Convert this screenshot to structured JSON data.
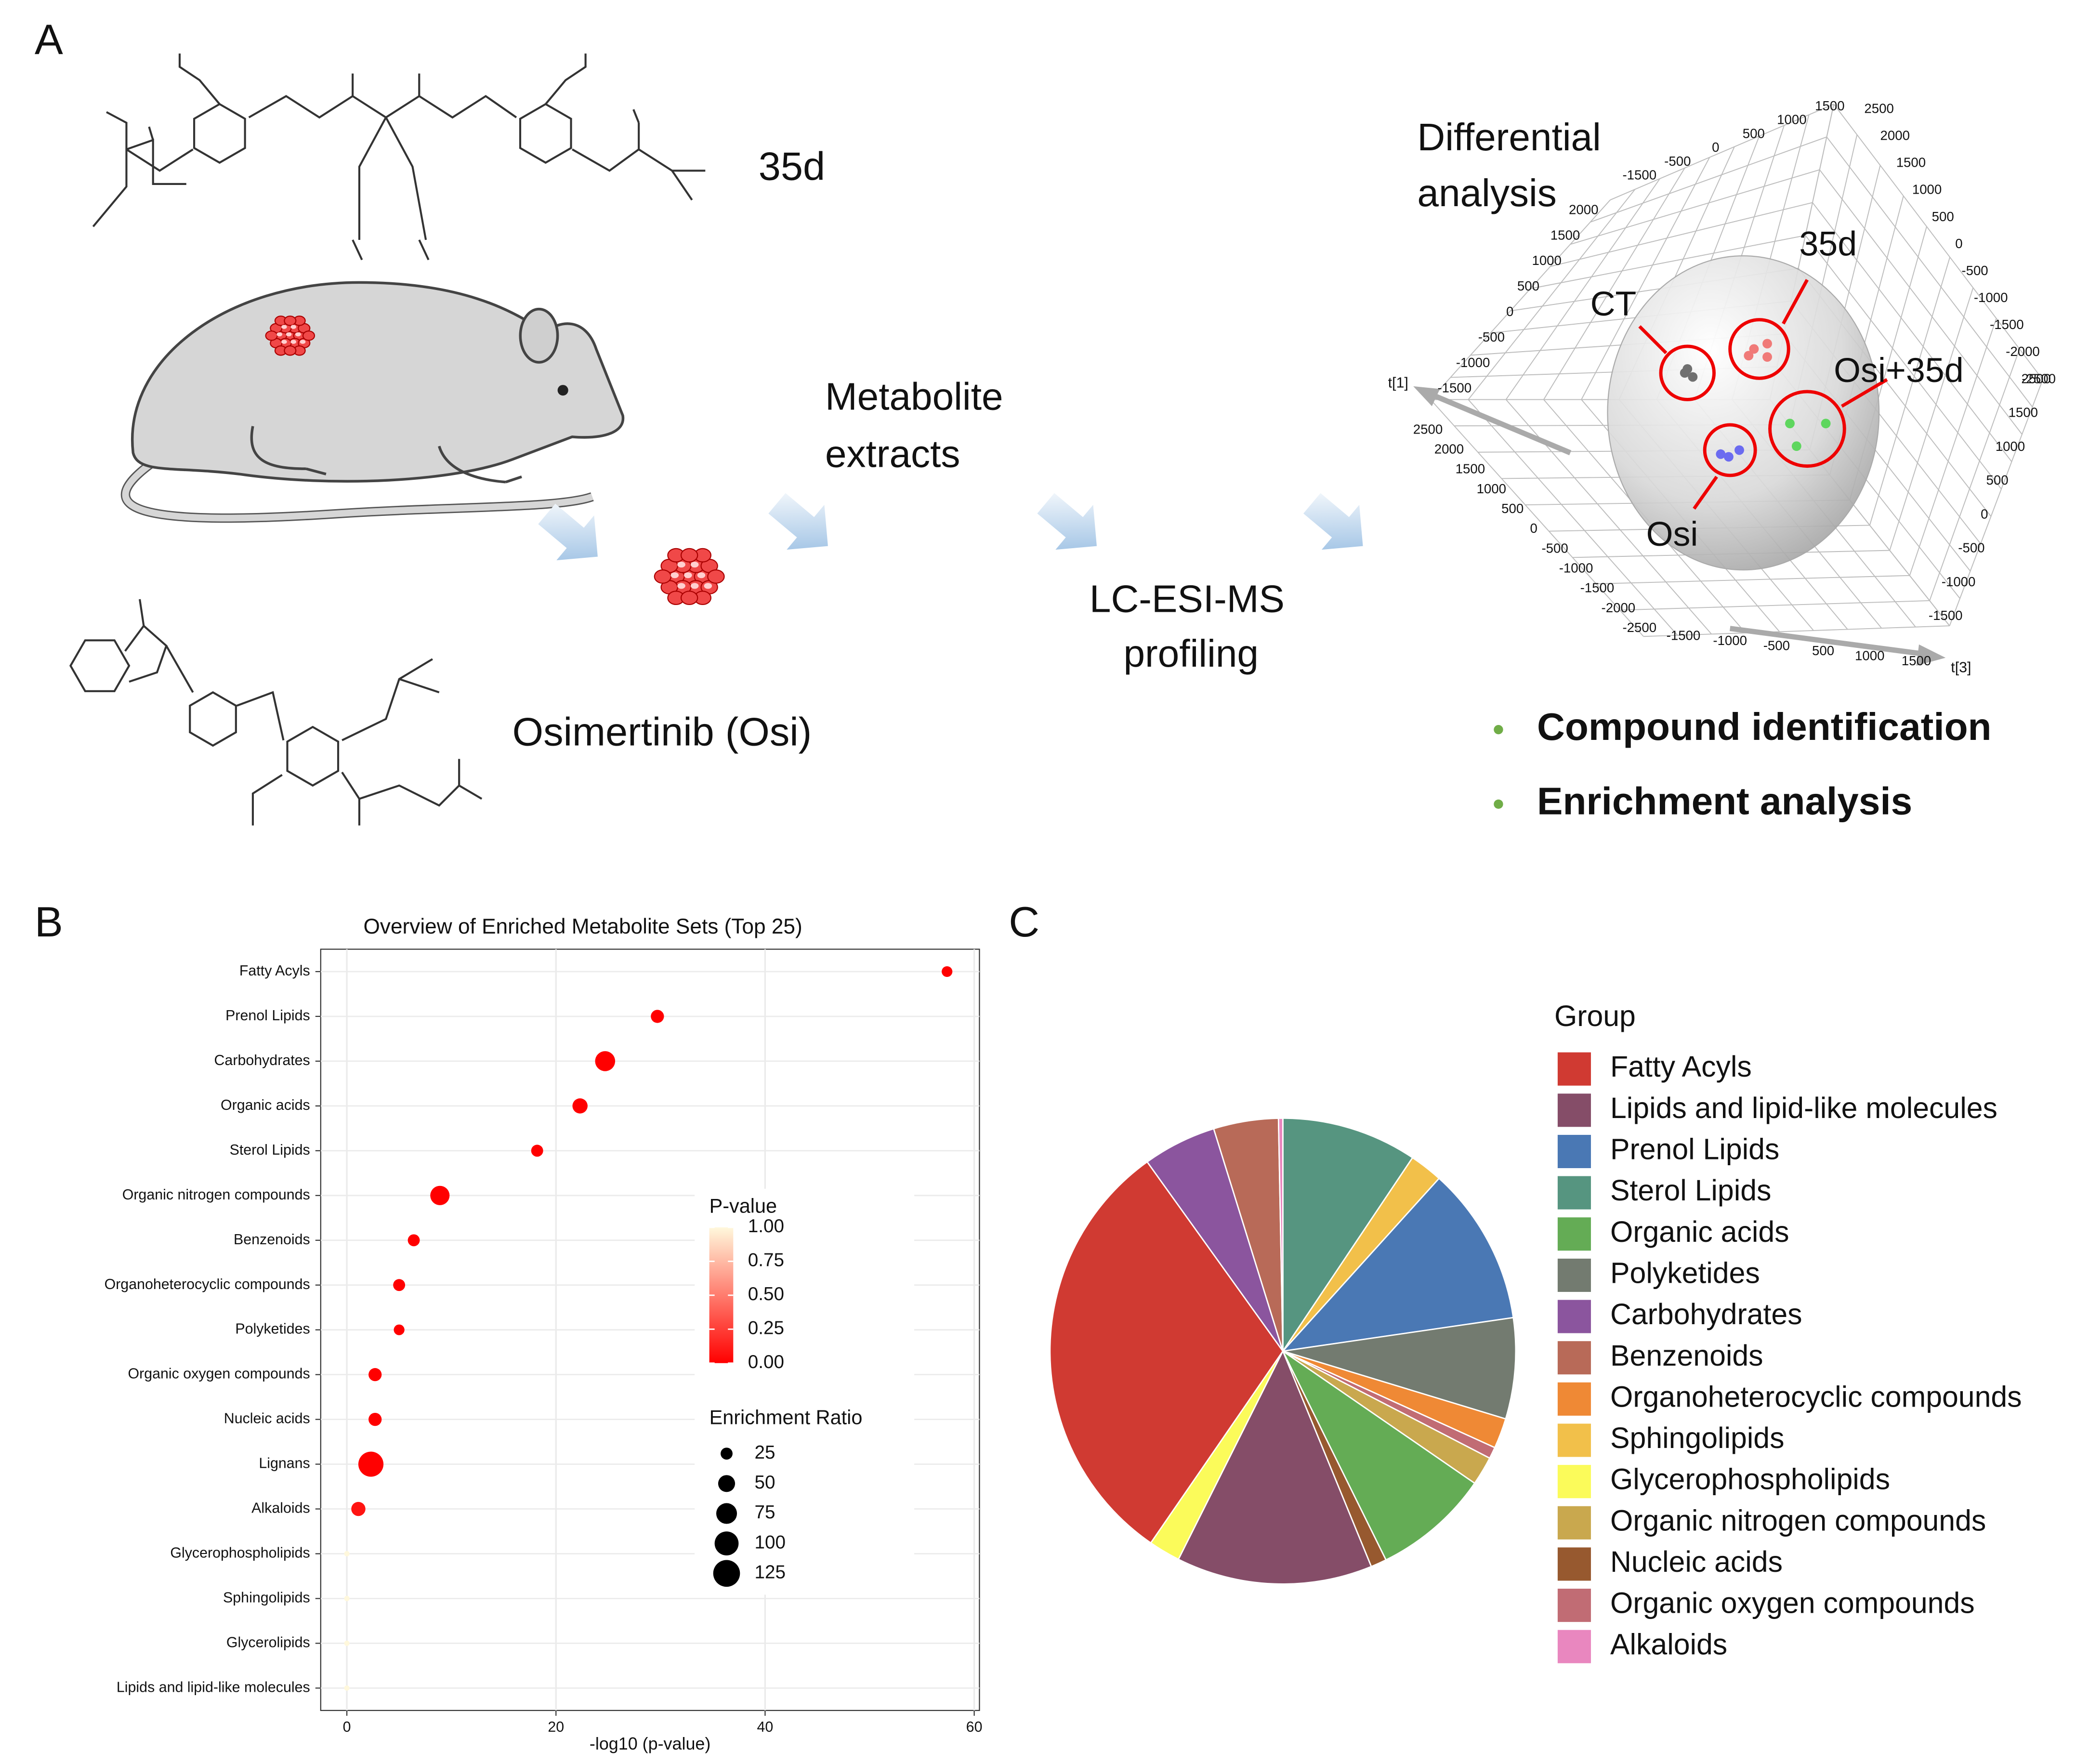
{
  "panel_labels": [
    "A",
    "B",
    "C"
  ],
  "panel_a": {
    "compound_1": "35d",
    "compound_2": "Osimertinib (Osi)",
    "step_1": [
      "Metabolite",
      "extracts"
    ],
    "step_2": [
      "LC-ESI-MS",
      "profiling"
    ],
    "step_3": [
      "Differential",
      "analysis"
    ],
    "pca": {
      "groups": [
        {
          "name": "CT",
          "color": "#707070"
        },
        {
          "name": "35d",
          "color": "#f07a78"
        },
        {
          "name": "Osi+35d",
          "color": "#5ed65e"
        },
        {
          "name": "Osi",
          "color": "#6b6bf0"
        }
      ],
      "axis_labels": [
        "t[1]",
        "t[3]"
      ],
      "tick_axes": [
        [
          "-1500",
          "-500",
          "0",
          "500",
          "1000",
          "1500"
        ],
        [
          "2500",
          "2000",
          "1500",
          "1000",
          "500",
          "0",
          "-500",
          "-1000",
          "-1500",
          "-2000",
          "-2500"
        ],
        [
          "2500",
          "1500",
          "1000",
          "500",
          "0",
          "-500",
          "-1000",
          "-1500"
        ],
        [
          "2000",
          "1500",
          "1000",
          "500",
          "0",
          "-500",
          "-1000",
          "-1500"
        ],
        [
          "2500",
          "2000",
          "1500",
          "1000",
          "500",
          "0",
          "-500",
          "-1000",
          "-1500",
          "-2000",
          "-2500"
        ],
        [
          "-1500",
          "-1000",
          "-500",
          "500",
          "1000",
          "1500"
        ]
      ]
    },
    "outputs": [
      "Compound identification",
      "Enrichment analysis"
    ],
    "output_color": "#70ad47"
  },
  "chart_data": [
    {
      "type": "dot",
      "title": "Overview of Enriched Metabolite Sets (Top 25)",
      "x_label": "-log10 (p-value)",
      "categories": [
        "Fatty Acyls",
        "Prenol Lipids",
        "Carbohydrates",
        "Organic acids",
        "Sterol Lipids",
        "Organic nitrogen compounds",
        "Benzenoids",
        "Organoheterocyclic compounds",
        "Polyketides",
        "Organic oxygen compounds",
        "Nucleic acids",
        "Lignans",
        "Alkaloids",
        "Glycerophospholipids",
        "Sphingolipids",
        "Glycerolipids",
        "Lipids and lipid-like molecules"
      ],
      "values": [
        57.4,
        29.7,
        24.7,
        22.3,
        18.2,
        8.9,
        6.4,
        5.0,
        5.0,
        2.7,
        2.7,
        2.3,
        1.1,
        0,
        0,
        0,
        0
      ],
      "sizes": [
        20,
        30,
        70,
        40,
        25,
        65,
        25,
        25,
        20,
        30,
        30,
        110,
        35,
        5,
        5,
        5,
        5
      ],
      "p_values": [
        0,
        0,
        0,
        0,
        0,
        0,
        0,
        0,
        0,
        0.002,
        0.002,
        0.005,
        0.08,
        1,
        1,
        1,
        1
      ],
      "xlim": [
        -2.5,
        60.5
      ],
      "xticks": [
        0,
        20,
        40,
        60
      ],
      "grid": true,
      "color_legend_title": "P-value",
      "colorbar_lim": [
        0,
        1
      ],
      "colorbar_ticks": [
        {
          "value": 1,
          "label": "1.00"
        },
        {
          "value": 0.75,
          "label": "0.75"
        },
        {
          "value": 0.5,
          "label": "0.50"
        },
        {
          "value": 0.25,
          "label": "0.25"
        },
        {
          "value": 0,
          "label": "0.00"
        }
      ],
      "colorscale": [
        "#ff0000",
        "#fff8dc"
      ],
      "size_legend_title": "Enrichment Ratio",
      "size_legend": [
        25,
        50,
        75,
        100,
        125
      ],
      "size_legend_color": "#000000"
    },
    {
      "type": "pie",
      "categories": [
        "Sterol Lipids",
        "Sphingolipids",
        "Prenol Lipids",
        "Polyketides",
        "Organoheterocyclic compounds",
        "Organic oxygen compounds",
        "Organic nitrogen compounds",
        "Organic acids",
        "Nucleic acids",
        "Lipids and lipid-like molecules",
        "Glycerophospholipids",
        "Fatty Acyls",
        "Carbohydrates",
        "Benzenoids",
        "Alkaloids"
      ],
      "values": [
        9.4,
        2.3,
        11.0,
        7.0,
        2.1,
        0.8,
        2.0,
        8.1,
        1.1,
        13.6,
        2.2,
        30.5,
        5.1,
        4.5,
        0.3
      ],
      "colors": [
        "#569580",
        "#f2c04a",
        "#4a78b4",
        "#737b70",
        "#ef8935",
        "#c16c74",
        "#c9a84e",
        "#64ac55",
        "#97592f",
        "#854d68",
        "#fbfb5a",
        "#d03a32",
        "#8b559e",
        "#b86a58",
        "#e987bf"
      ],
      "legend": {
        "title": "Group",
        "entries": [
          "Fatty Acyls",
          "Lipids and lipid-like molecules",
          "Prenol Lipids",
          "Sterol Lipids",
          "Organic acids",
          "Polyketides",
          "Carbohydrates",
          "Benzenoids",
          "Organoheterocyclic compounds",
          "Sphingolipids",
          "Glycerophospholipids",
          "Organic nitrogen compounds",
          "Nucleic acids",
          "Organic oxygen compounds",
          "Alkaloids"
        ]
      }
    }
  ]
}
